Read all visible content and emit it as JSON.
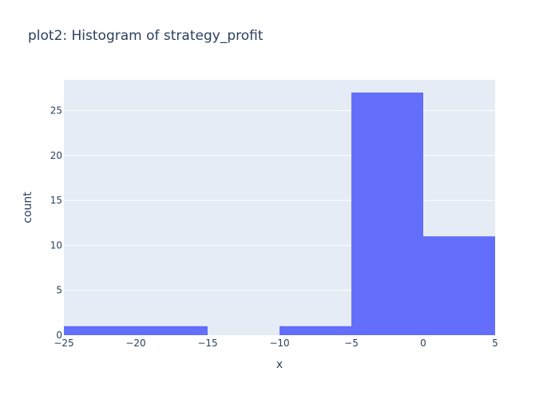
{
  "chart_data": {
    "type": "bar",
    "title": "plot2: Histogram of strategy_profit",
    "xlabel": "x",
    "ylabel": "count",
    "xlim": [
      -25,
      5
    ],
    "ylim": [
      0,
      28.42
    ],
    "x_ticks": [
      -25,
      -20,
      -15,
      -10,
      -5,
      0,
      5
    ],
    "x_tick_labels": [
      "−25",
      "−20",
      "−15",
      "−10",
      "−5",
      "0",
      "5"
    ],
    "y_ticks": [
      0,
      5,
      10,
      15,
      20,
      25
    ],
    "y_tick_labels": [
      "0",
      "5",
      "10",
      "15",
      "20",
      "25"
    ],
    "grid": true,
    "bins": [
      {
        "start": -25,
        "end": -15,
        "count": 1
      },
      {
        "start": -15,
        "end": -10,
        "count": 0
      },
      {
        "start": -10,
        "end": -5,
        "count": 1
      },
      {
        "start": -5,
        "end": 0,
        "count": 27
      },
      {
        "start": 0,
        "end": 5,
        "count": 11
      }
    ],
    "colors": {
      "bar": "#636efa",
      "plot_bg": "#e5ecf6",
      "grid": "#ffffff",
      "text": "#2a3f5f"
    }
  }
}
